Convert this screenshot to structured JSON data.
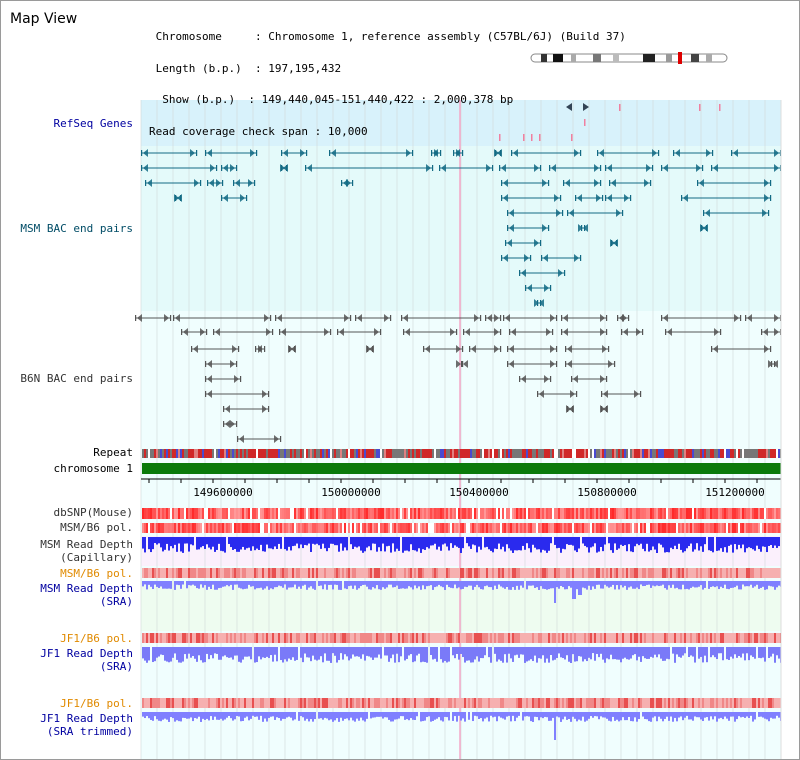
{
  "title": "Map View",
  "info": {
    "chromosome_label": "Chromosome",
    "chromosome_value": "Chromosome 1, reference assembly (C57BL/6J) (Build 37)",
    "length_label": "Length (b.p.)",
    "length_value": "197,195,432",
    "show_label": "Show (b.p.)",
    "show_value": "149,440,045-151,440,422 : 2,000,378 bp",
    "coverage_label": "Read coverage check span",
    "coverage_value": "10,000"
  },
  "tracks": {
    "refseq": "RefSeq Genes",
    "msm_bac": "MSM BAC end pairs",
    "b6n_bac": "B6N BAC end pairs",
    "repeat": "Repeat",
    "chromosome": "chromosome 1",
    "dbsnp": "dbSNP(Mouse)",
    "msm_b6_pol_1": "MSM/B6 pol.",
    "msm_read_depth_cap": [
      "MSM Read Depth",
      "(Capillary)"
    ],
    "msm_b6_pol_2": "MSM/B6 pol.",
    "msm_read_depth_sra": [
      "MSM Read Depth",
      "(SRA)"
    ],
    "jf1_b6_pol_1": "JF1/B6 pol.",
    "jf1_read_depth_sra": [
      "JF1 Read Depth",
      "(SRA)"
    ],
    "jf1_b6_pol_2": "JF1/B6 pol.",
    "jf1_read_depth_trim": [
      "JF1 Read Depth",
      "(SRA trimmed)"
    ]
  },
  "axis": {
    "ticks": [
      "149600000",
      "150000000",
      "150400000",
      "150800000",
      "151200000"
    ]
  },
  "colors": {
    "refseq_bg": "#d8f2fb",
    "msm_bg": "#e4fafa",
    "light_bg": "#eefefe",
    "track_label_blue": "#0000a0",
    "track_label_teal": "#004c66",
    "track_label_grey": "#333333",
    "track_label_orange": "#e08a00",
    "chromosome_green": "#0a7a0a",
    "depth_blue": "#2a2aee",
    "depth_light_blue": "#8080ff",
    "pol_red": "#ee4444"
  }
}
